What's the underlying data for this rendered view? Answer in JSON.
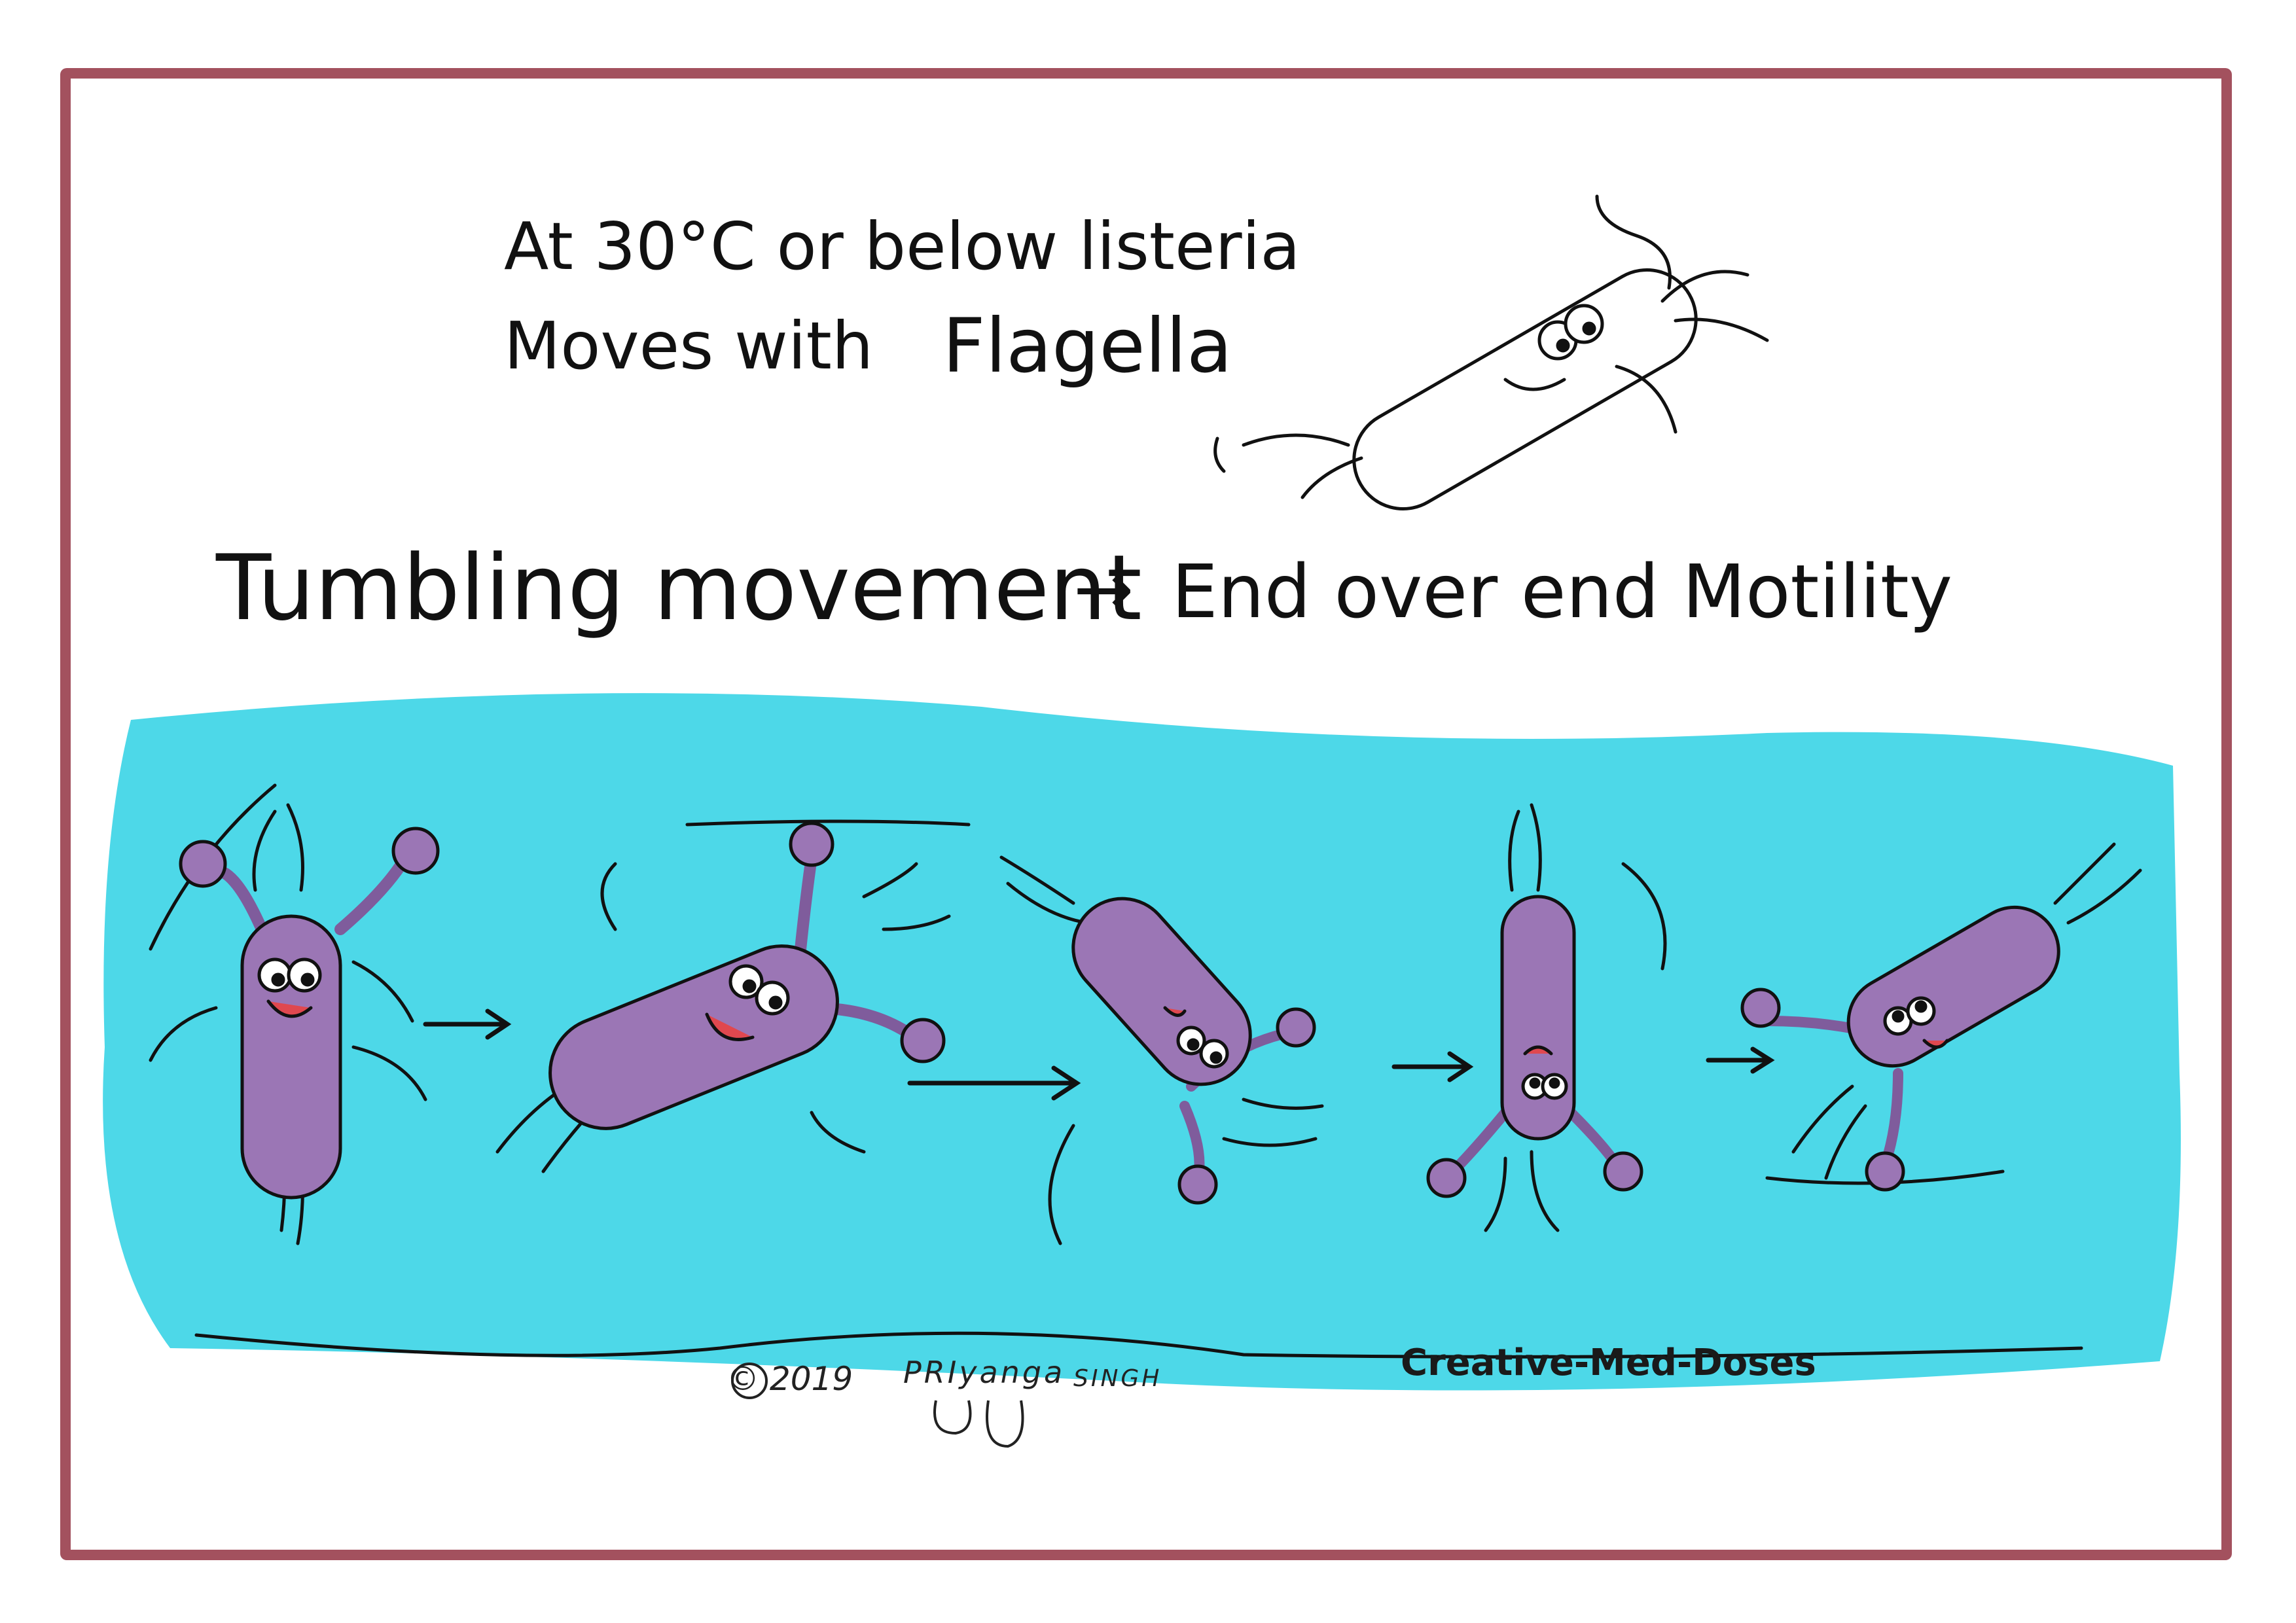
{
  "caption": {
    "line1": "At 30°C or below listeria",
    "line2_prefix": "Moves with",
    "line2_keyword": "Flagella"
  },
  "tumbling": {
    "label": "Tumbling movement",
    "arrow": "→",
    "description": "End over end Motility"
  },
  "credits": {
    "brand": "Creative-Med-Doses",
    "copyright": "© 2019",
    "author_first": "PRIyanga",
    "author_last": "SINGH"
  },
  "colors": {
    "frame": "#a3515e",
    "water": "#4dd8e8",
    "bacterium": "#9b76b5",
    "bacterium_dark": "#7f5c9c",
    "tongue": "#e0484f",
    "ink": "#111111"
  }
}
